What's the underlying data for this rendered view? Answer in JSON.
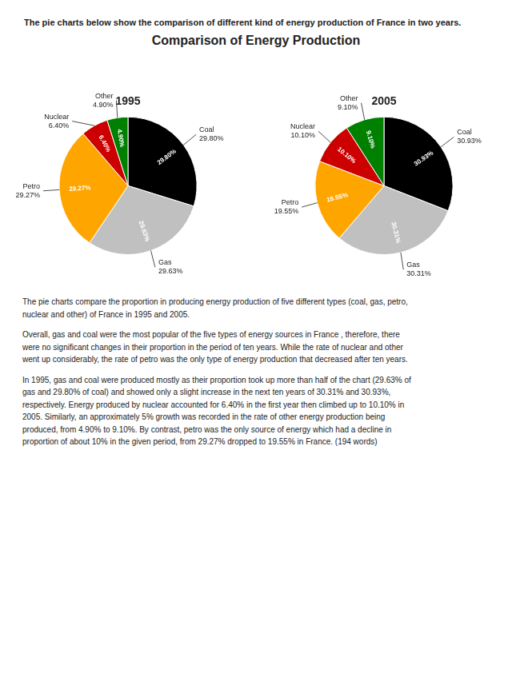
{
  "title": "Comparison of Energy Production",
  "subtitle": "The pie charts below show the comparison of different kind of energy production of France in two years.",
  "annotations": [
    "The pie charts compare the proportion in producing energy production of five different types (coal, gas, petro,\nnuclear and other) of France in 1995 and 2005.",
    "Overall, gas and coal were the most popular of the five types of energy sources in France , therefore, there\nwere no significant changes in their proportion in the period of ten years. While the rate of nuclear and other\nwent up considerably, the rate of petro was the only type of energy production that decreased after ten years.",
    "In 1995, gas and coal were produced mostly as their proportion took up more than half of the chart (29.63% of\ngas and 29.80% of coal) and showed only a slight increase in the next ten years of 30.31% and 30.93%,\nrespectively. Energy produced by nuclear accounted for 6.40% in the first year then climbed up to 10.10% in\n2005. Similarly, an approximately 5% growth was recorded in the rate of other energy production being\nproduced, from 4.90% to 9.10%. By contrast, petro was the only source of energy which had a decline in\nproportion of about 10% in the given period, from 29.27% dropped to 19.55% in France.  (194 words)"
  ],
  "chart_data": [
    {
      "type": "pie",
      "title": "1995",
      "categories": [
        "Coal",
        "Gas",
        "Petro",
        "Nuclear",
        "Other"
      ],
      "values": [
        29.8,
        29.63,
        29.27,
        6.4,
        4.9
      ],
      "value_labels": [
        "29.80%",
        "29.63%",
        "29.27%",
        "6.40%",
        "4.90%"
      ],
      "colors": [
        "#000000",
        "#c0c0c0",
        "#ffa500",
        "#cc0000",
        "#008000"
      ],
      "data_labels": true
    },
    {
      "type": "pie",
      "title": "2005",
      "categories": [
        "Coal",
        "Gas",
        "Petro",
        "Nuclear",
        "Other"
      ],
      "values": [
        30.93,
        30.31,
        19.55,
        10.1,
        9.1
      ],
      "value_labels": [
        "30.93%",
        "30.31%",
        "19.55%",
        "10.10%",
        "9.10%"
      ],
      "colors": [
        "#000000",
        "#c0c0c0",
        "#ffa500",
        "#cc0000",
        "#008000"
      ],
      "data_labels": true
    }
  ]
}
